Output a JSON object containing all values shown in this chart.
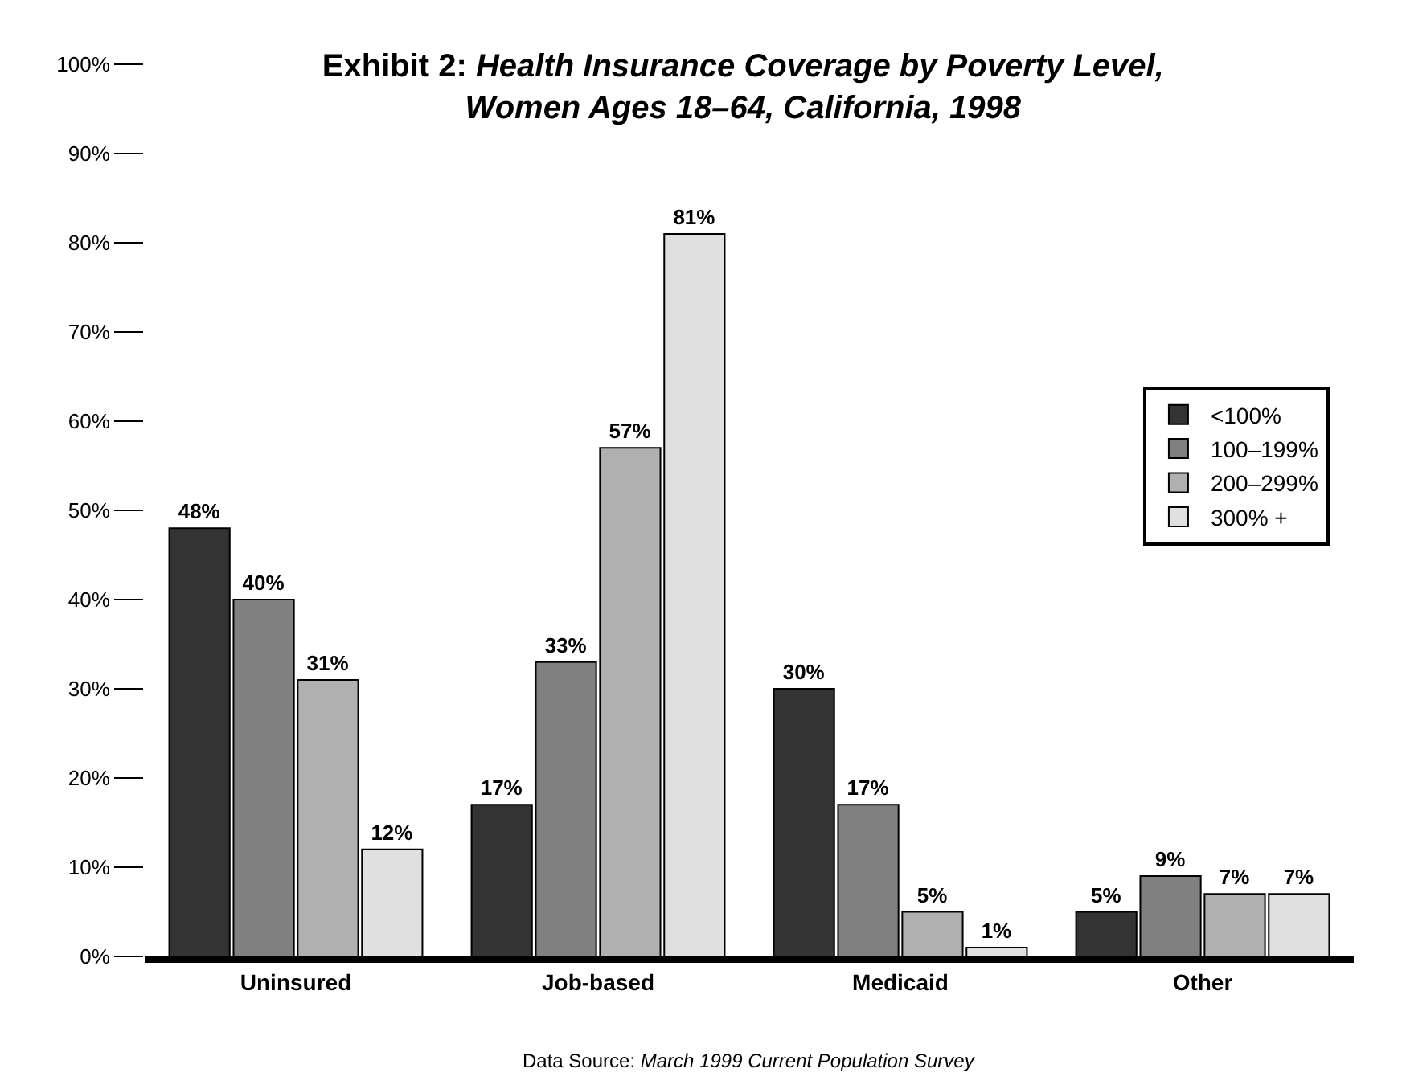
{
  "chart_data": {
    "type": "bar",
    "title": "Exhibit 2: Health Insurance Coverage by Poverty Level, Women Ages 18–64, California, 1998",
    "categories": [
      "Uninsured",
      "Job-based",
      "Medicaid",
      "Other"
    ],
    "series": [
      {
        "name": "<100%",
        "color": "#333333",
        "values": [
          48,
          17,
          30,
          5
        ],
        "value_labels": [
          "48%",
          "17%",
          "30%",
          "5%"
        ]
      },
      {
        "name": "100–199%",
        "color": "#808080",
        "values": [
          40,
          33,
          17,
          9
        ],
        "value_labels": [
          "40%",
          "33%",
          "17%",
          "9%"
        ]
      },
      {
        "name": "200–299%",
        "color": "#b0b0b0",
        "values": [
          31,
          57,
          5,
          7
        ],
        "value_labels": [
          "31%",
          "57%",
          "5%",
          "7%"
        ]
      },
      {
        "name": "300% +",
        "color": "#e0e0e0",
        "values": [
          12,
          81,
          1,
          7
        ],
        "value_labels": [
          "12%",
          "81%",
          "1%",
          "7%"
        ]
      }
    ],
    "ylim": [
      0,
      100
    ],
    "yticks": [
      {
        "value": 0,
        "label": "0%"
      },
      {
        "value": 10,
        "label": "10%"
      },
      {
        "value": 20,
        "label": "20%"
      },
      {
        "value": 30,
        "label": "30%"
      },
      {
        "value": 40,
        "label": "40%"
      },
      {
        "value": 50,
        "label": "50%"
      },
      {
        "value": 60,
        "label": "60%"
      },
      {
        "value": 70,
        "label": "70%"
      },
      {
        "value": 80,
        "label": "80%"
      },
      {
        "value": 90,
        "label": "90%"
      },
      {
        "value": 100,
        "label": "100%"
      }
    ],
    "legend": "right",
    "annotations": [
      "Data Source: March 1999 Current Population Survey"
    ]
  }
}
